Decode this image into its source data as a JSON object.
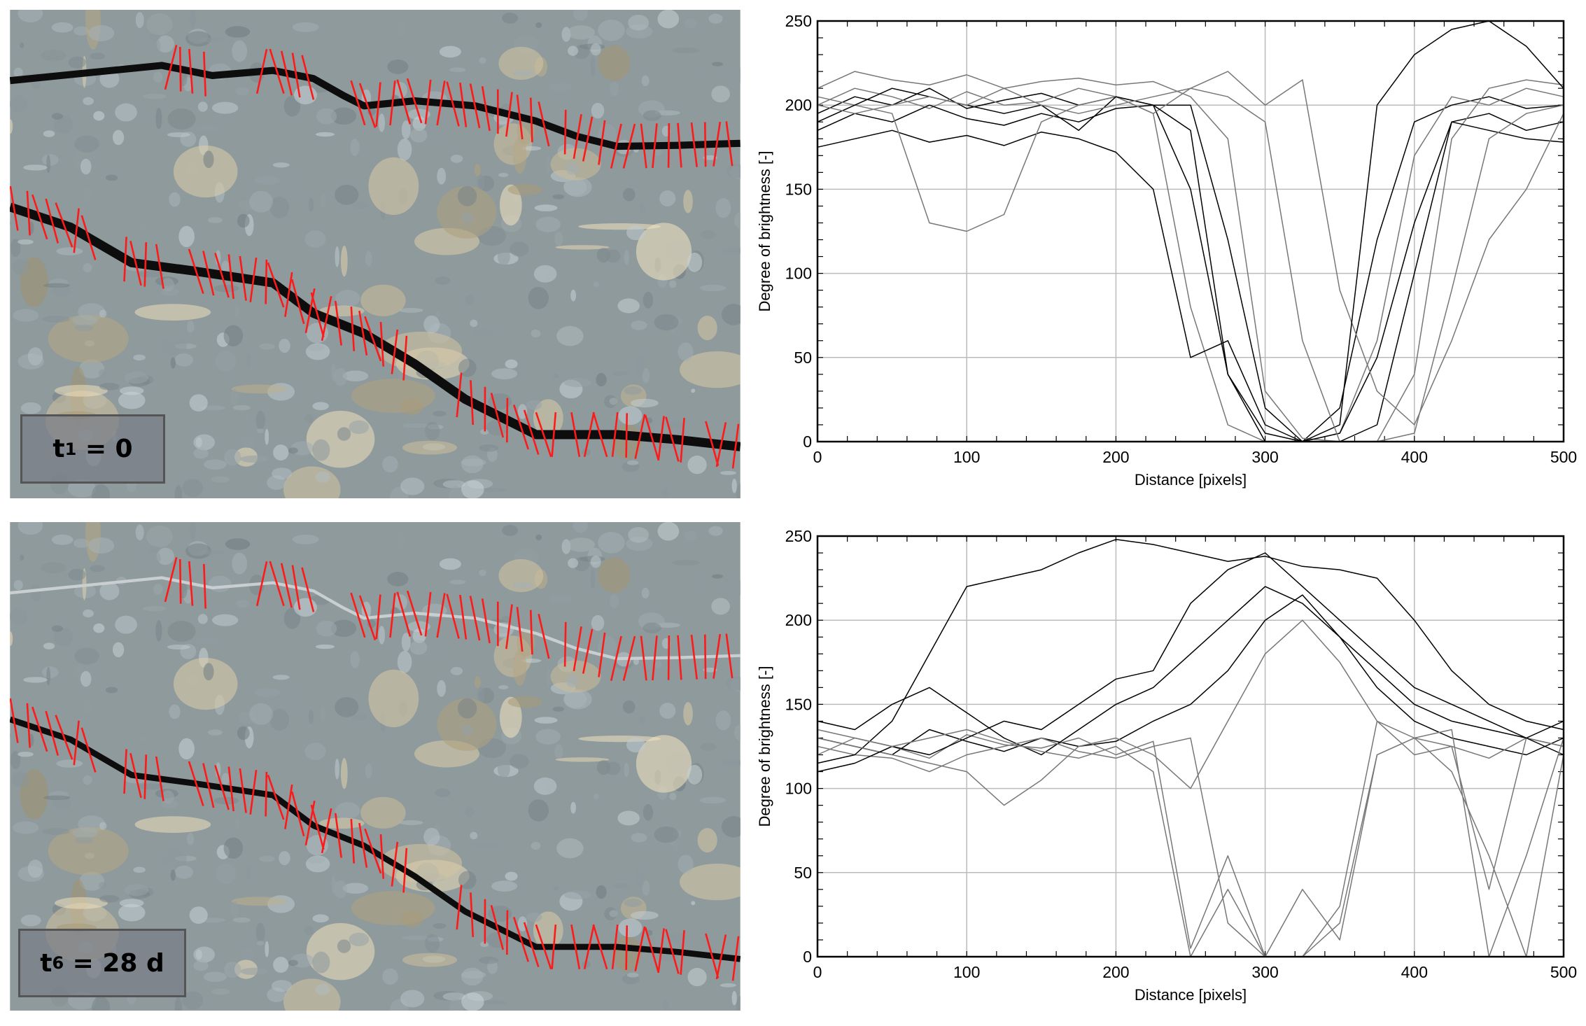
{
  "panels": [
    {
      "label": {
        "base": "t",
        "sub": "1",
        "rest": " = 0"
      },
      "upper_crack": "open"
    },
    {
      "label": {
        "base": "t",
        "sub": "6",
        "rest": " = 28 d"
      },
      "upper_crack": "healed"
    }
  ],
  "colors": {
    "measurement_lines": "#ff1a1a",
    "crack": "#0d0d0d",
    "concrete": "#8e9a9c",
    "curve_dark": "#000000",
    "curve_gray": "#777777"
  },
  "chart_data": [
    {
      "type": "line",
      "xlabel": "Distance [pixels]",
      "ylabel": "Degree of brightness [-]",
      "xlim": [
        0,
        500
      ],
      "ylim": [
        0,
        250
      ],
      "xticks": [
        0,
        100,
        200,
        300,
        400,
        500
      ],
      "yticks": [
        0,
        50,
        100,
        150,
        200,
        250
      ],
      "grid": true,
      "x": [
        0,
        25,
        50,
        75,
        100,
        125,
        150,
        175,
        200,
        225,
        250,
        275,
        300,
        325,
        350,
        375,
        400,
        425,
        450,
        475,
        500
      ],
      "series": [
        {
          "values": [
            195,
            205,
            200,
            210,
            198,
            203,
            207,
            200,
            205,
            200,
            150,
            40,
            5,
            0,
            20,
            120,
            190,
            200,
            205,
            198,
            200
          ]
        },
        {
          "values": [
            200,
            210,
            205,
            198,
            208,
            200,
            202,
            210,
            205,
            195,
            80,
            10,
            0,
            0,
            5,
            60,
            170,
            205,
            200,
            210,
            205
          ]
        },
        {
          "values": [
            185,
            195,
            190,
            200,
            192,
            188,
            195,
            190,
            198,
            200,
            200,
            120,
            20,
            0,
            0,
            10,
            100,
            190,
            195,
            185,
            190
          ]
        },
        {
          "values": [
            210,
            220,
            215,
            212,
            218,
            210,
            214,
            216,
            212,
            214,
            205,
            180,
            30,
            2,
            0,
            0,
            40,
            180,
            210,
            215,
            212
          ]
        },
        {
          "values": [
            175,
            180,
            185,
            178,
            182,
            176,
            184,
            180,
            172,
            150,
            50,
            60,
            10,
            0,
            5,
            50,
            130,
            190,
            185,
            180,
            178
          ]
        },
        {
          "values": [
            205,
            200,
            195,
            130,
            125,
            135,
            190,
            200,
            205,
            195,
            210,
            220,
            200,
            215,
            90,
            30,
            10,
            60,
            120,
            150,
            195
          ]
        },
        {
          "values": [
            190,
            200,
            210,
            205,
            200,
            195,
            200,
            185,
            205,
            200,
            185,
            40,
            0,
            0,
            10,
            200,
            230,
            245,
            250,
            235,
            210
          ]
        },
        {
          "values": [
            200,
            195,
            200,
            205,
            200,
            210,
            200,
            195,
            200,
            205,
            210,
            205,
            190,
            60,
            0,
            0,
            5,
            90,
            180,
            195,
            200
          ]
        }
      ]
    },
    {
      "type": "line",
      "xlabel": "Distance [pixels]",
      "ylabel": "Degree of brightness [-]",
      "xlim": [
        0,
        500
      ],
      "ylim": [
        0,
        250
      ],
      "xticks": [
        0,
        100,
        200,
        300,
        400,
        500
      ],
      "yticks": [
        0,
        50,
        100,
        150,
        200,
        250
      ],
      "grid": true,
      "x": [
        0,
        25,
        50,
        75,
        100,
        125,
        150,
        175,
        200,
        225,
        250,
        275,
        300,
        325,
        350,
        375,
        400,
        425,
        450,
        475,
        500
      ],
      "series": [
        {
          "values": [
            130,
            125,
            120,
            135,
            128,
            122,
            130,
            125,
            128,
            140,
            150,
            170,
            200,
            215,
            190,
            160,
            140,
            130,
            125,
            120,
            130
          ]
        },
        {
          "values": [
            120,
            130,
            125,
            118,
            132,
            126,
            124,
            130,
            120,
            128,
            5,
            60,
            0,
            40,
            10,
            120,
            130,
            125,
            118,
            130,
            125
          ]
        },
        {
          "values": [
            140,
            135,
            150,
            160,
            145,
            130,
            120,
            135,
            150,
            160,
            180,
            200,
            220,
            210,
            190,
            170,
            150,
            140,
            135,
            130,
            140
          ]
        },
        {
          "values": [
            125,
            120,
            118,
            110,
            120,
            125,
            130,
            122,
            118,
            125,
            130,
            20,
            0,
            0,
            30,
            140,
            130,
            110,
            60,
            0,
            120
          ]
        },
        {
          "values": [
            115,
            120,
            140,
            180,
            220,
            225,
            230,
            240,
            248,
            245,
            240,
            235,
            238,
            232,
            230,
            225,
            200,
            170,
            150,
            140,
            135
          ]
        },
        {
          "values": [
            130,
            125,
            120,
            115,
            110,
            90,
            105,
            125,
            130,
            120,
            100,
            140,
            180,
            200,
            175,
            140,
            120,
            125,
            40,
            130,
            125
          ]
        },
        {
          "values": [
            110,
            115,
            125,
            120,
            130,
            140,
            135,
            150,
            165,
            170,
            210,
            230,
            240,
            220,
            200,
            180,
            160,
            150,
            140,
            130,
            120
          ]
        },
        {
          "values": [
            135,
            130,
            125,
            130,
            135,
            128,
            122,
            118,
            125,
            110,
            0,
            40,
            0,
            0,
            20,
            120,
            130,
            135,
            0,
            60,
            130
          ]
        }
      ]
    }
  ]
}
